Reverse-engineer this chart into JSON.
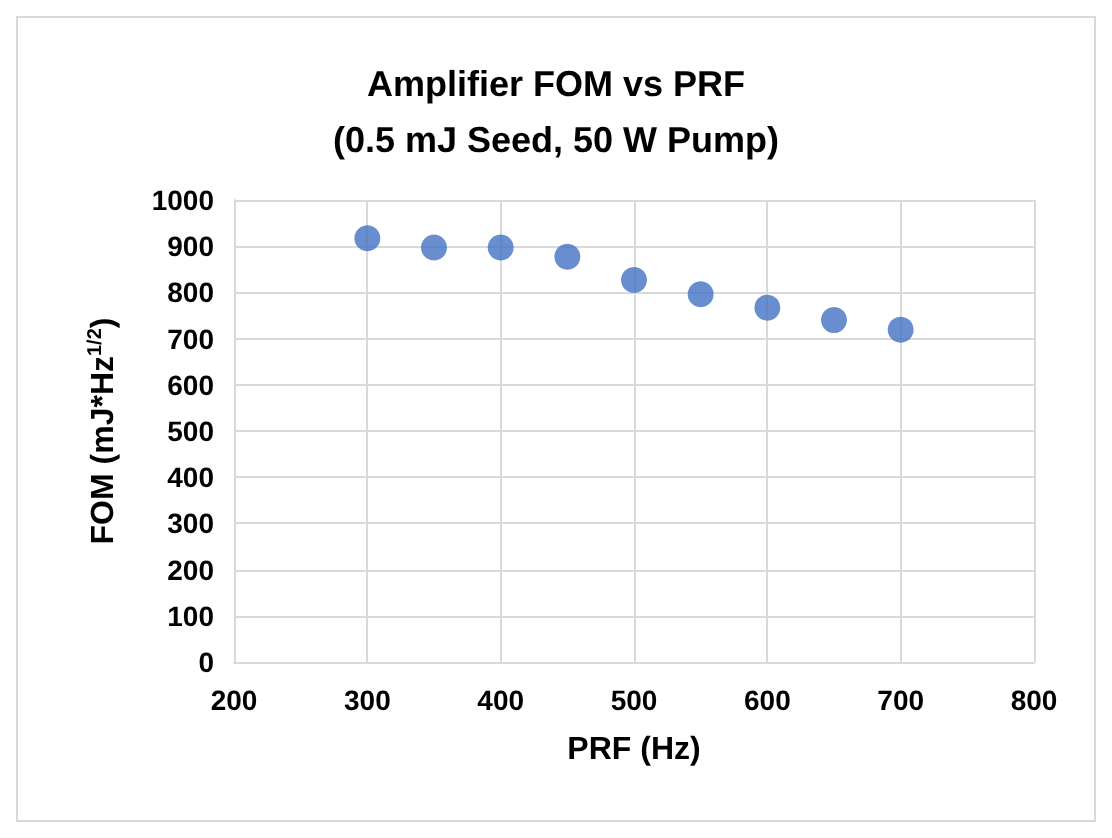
{
  "chart_data": {
    "type": "scatter",
    "title": "Amplifier FOM vs PRF\n(0.5 mJ Seed, 50 W Pump)",
    "xlabel": "PRF (Hz)",
    "ylabel": "FOM (mJ*Hz$^{1/2}$)",
    "x": [
      300,
      350,
      400,
      450,
      500,
      550,
      600,
      650,
      700
    ],
    "series": [
      {
        "color": "#4472c4",
        "values": [
          917,
          897,
          897,
          877,
          827,
          796,
          767,
          740,
          719
        ]
      }
    ],
    "xlim": [
      200,
      800
    ],
    "xticks": [
      200,
      300,
      400,
      500,
      600,
      700,
      800
    ],
    "ylim": [
      0,
      1000
    ],
    "yticks": [
      0,
      100,
      200,
      300,
      400,
      500,
      600,
      700,
      800,
      900,
      1000
    ],
    "grid": true,
    "marker": "circle"
  }
}
